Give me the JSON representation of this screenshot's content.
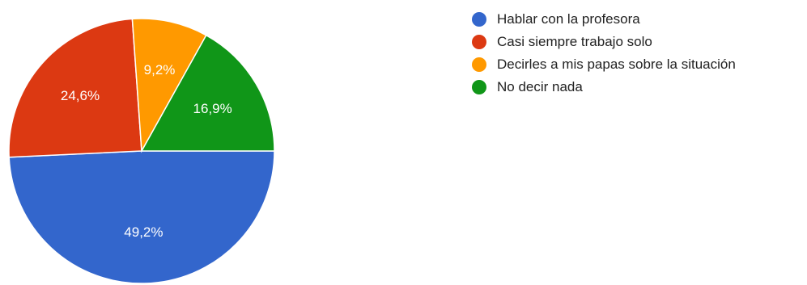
{
  "chart_data": {
    "type": "pie",
    "slices": [
      {
        "label": "Hablar con la profesora",
        "value": 49.2,
        "value_label": "49,2%",
        "color": "#3366cc"
      },
      {
        "label": "Casi siempre trabajo solo",
        "value": 24.6,
        "value_label": "24,6%",
        "color": "#dc3912"
      },
      {
        "label": "Decirles a mis papas sobre la situación",
        "value": 9.2,
        "value_label": "9,2%",
        "color": "#ff9900"
      },
      {
        "label": "No decir nada",
        "value": 16.9,
        "value_label": "16,9%",
        "color": "#109618"
      }
    ],
    "legend_position": "top-right"
  }
}
